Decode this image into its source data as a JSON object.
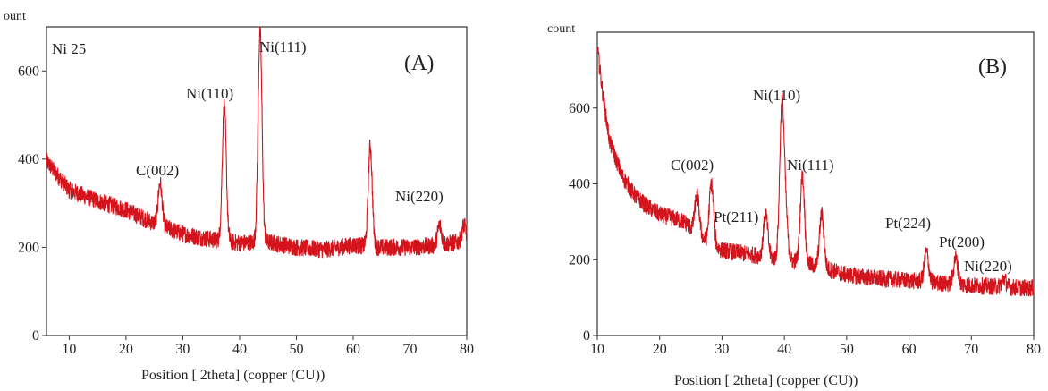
{
  "chart_data": [
    {
      "type": "line",
      "title": "",
      "panel_label": "(A)",
      "sample_label": "Ni 25",
      "ylabel_fragment": "ount",
      "xlabel": "Position [  2theta] (copper (CU))",
      "xlim": [
        6,
        80
      ],
      "ylim": [
        0,
        700
      ],
      "xticks": [
        10,
        20,
        30,
        40,
        50,
        60,
        70,
        80
      ],
      "yticks": [
        0,
        200,
        400,
        600
      ],
      "grid": false,
      "series_color": "#d4141c",
      "baseline": [
        [
          6,
          395
        ],
        [
          10,
          330
        ],
        [
          15,
          305
        ],
        [
          20,
          285
        ],
        [
          24,
          260
        ],
        [
          30,
          230
        ],
        [
          35,
          218
        ],
        [
          40,
          210
        ],
        [
          45,
          212
        ],
        [
          50,
          200
        ],
        [
          55,
          195
        ],
        [
          60,
          205
        ],
        [
          65,
          200
        ],
        [
          70,
          200
        ],
        [
          75,
          205
        ],
        [
          80,
          215
        ]
      ],
      "peaks": [
        {
          "label": "C(002)",
          "x": 26,
          "y": 345
        },
        {
          "label": "Ni(110)",
          "x": 37.3,
          "y": 520
        },
        {
          "label": "Ni(111)",
          "x": 43.6,
          "y": 690
        },
        {
          "label": "",
          "x": 63,
          "y": 430
        },
        {
          "label": "Ni(220)",
          "x": 75.2,
          "y": 250
        },
        {
          "label": "",
          "x": 79.5,
          "y": 250
        }
      ]
    },
    {
      "type": "line",
      "title": "",
      "panel_label": "(B)",
      "ylabel_fragment": "count",
      "xlabel": "Position [  2theta] (copper (CU))",
      "xlim": [
        10,
        80
      ],
      "ylim": [
        0,
        800
      ],
      "xticks": [
        10,
        20,
        30,
        40,
        50,
        60,
        70,
        80
      ],
      "yticks": [
        0,
        200,
        400,
        600
      ],
      "grid": false,
      "series_color": "#d4141c",
      "baseline": [
        [
          10,
          760
        ],
        [
          11,
          620
        ],
        [
          12,
          510
        ],
        [
          14,
          420
        ],
        [
          16,
          370
        ],
        [
          18,
          340
        ],
        [
          20,
          320
        ],
        [
          24,
          300
        ],
        [
          28,
          240
        ],
        [
          30,
          225
        ],
        [
          34,
          215
        ],
        [
          38,
          205
        ],
        [
          42,
          195
        ],
        [
          46,
          180
        ],
        [
          50,
          160
        ],
        [
          55,
          150
        ],
        [
          60,
          145
        ],
        [
          65,
          138
        ],
        [
          70,
          132
        ],
        [
          75,
          128
        ],
        [
          80,
          125
        ]
      ],
      "peaks": [
        {
          "label": "C(002)",
          "x": 26,
          "y": 370
        },
        {
          "label": "Pt(211)",
          "x": 28.3,
          "y": 400
        },
        {
          "label": "",
          "x": 37,
          "y": 320
        },
        {
          "label": "Ni(110)",
          "x": 39.6,
          "y": 595
        },
        {
          "label": "",
          "x": 40.2,
          "y": 310
        },
        {
          "label": "Ni(111)",
          "x": 42.9,
          "y": 420
        },
        {
          "label": "",
          "x": 46,
          "y": 320
        },
        {
          "label": "Pt(224)",
          "x": 62.8,
          "y": 220
        },
        {
          "label": "Pt(200)",
          "x": 67.5,
          "y": 205
        },
        {
          "label": "Ni(220)",
          "x": 75.2,
          "y": 150
        }
      ]
    }
  ]
}
